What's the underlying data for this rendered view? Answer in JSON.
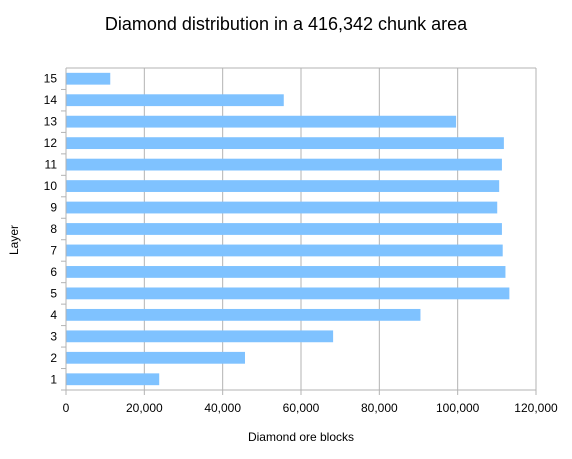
{
  "chart_data": {
    "type": "bar",
    "orientation": "horizontal",
    "title": "Diamond distribution in a 416,342 chunk area",
    "xlabel": "Diamond ore blocks",
    "ylabel": "Layer",
    "categories": [
      "1",
      "2",
      "3",
      "4",
      "5",
      "6",
      "7",
      "8",
      "9",
      "10",
      "11",
      "12",
      "13",
      "14",
      "15"
    ],
    "values": [
      23800,
      45700,
      68200,
      90500,
      113200,
      112200,
      111500,
      111300,
      110100,
      110600,
      111300,
      111800,
      99600,
      55600,
      11300
    ],
    "xlim": [
      0,
      120000
    ],
    "x_ticks": [
      0,
      20000,
      40000,
      60000,
      80000,
      100000,
      120000
    ],
    "x_tick_labels": [
      "0",
      "20,000",
      "40,000",
      "60,000",
      "80,000",
      "100,000",
      "120,000"
    ],
    "grid": true,
    "legend": "none",
    "bar_color": "#7fc2ff",
    "grid_color": "#b3b3b3"
  }
}
